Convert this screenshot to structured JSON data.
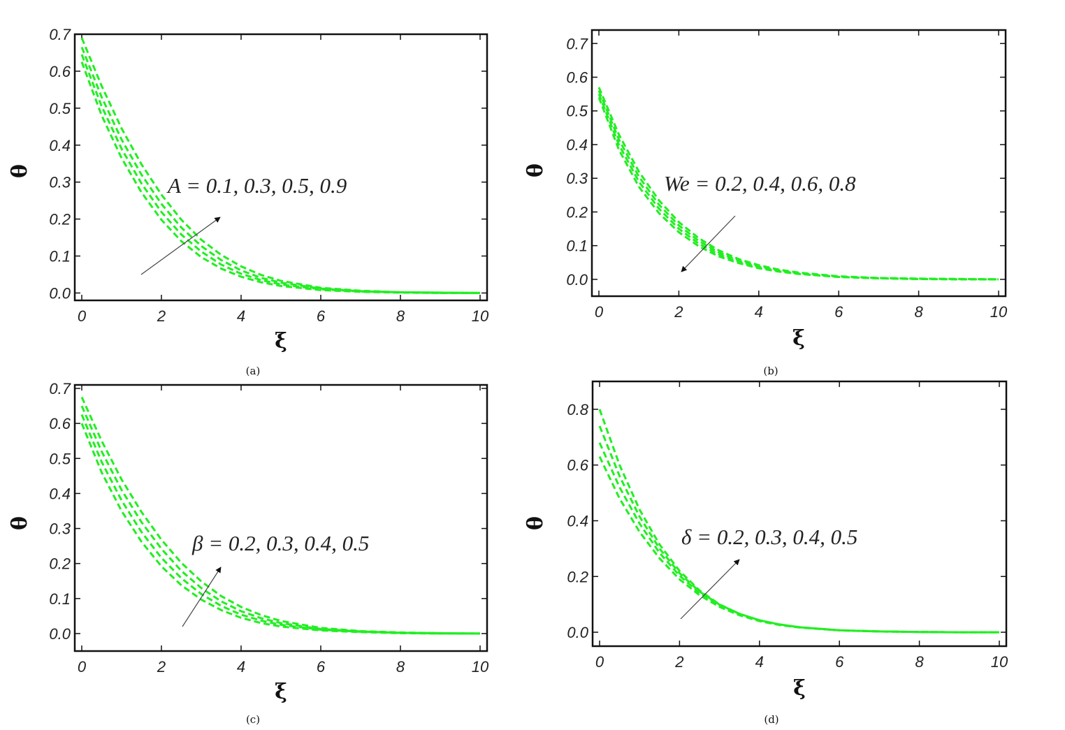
{
  "chart_data": [
    {
      "type": "line",
      "panel_label": "(a)",
      "xlabel": "ξ",
      "ylabel": "θ",
      "xlim": [
        0,
        10
      ],
      "ylim": [
        -0.02,
        0.7
      ],
      "xticks": [
        "0",
        "2",
        "4",
        "6",
        "8",
        "10"
      ],
      "yticks": [
        "0.0",
        "0.1",
        "0.2",
        "0.3",
        "0.4",
        "0.5",
        "0.6",
        "0.7"
      ],
      "grid": false,
      "line_color": "#22ee22",
      "line_style": "dashed",
      "annotation": "A = 0.1, 0.3, 0.5, 0.9",
      "arrow_direction": "up",
      "series": [
        {
          "x": [
            0,
            0.5,
            1,
            1.5,
            2,
            2.5,
            3,
            3.5,
            4,
            4.5,
            5,
            6,
            7,
            8,
            9,
            10
          ],
          "y": [
            0.625,
            0.48,
            0.365,
            0.272,
            0.198,
            0.14,
            0.097,
            0.066,
            0.044,
            0.029,
            0.019,
            0.008,
            0.003,
            0.001,
            0.0,
            0.0
          ]
        },
        {
          "x": [
            0,
            0.5,
            1,
            1.5,
            2,
            2.5,
            3,
            3.5,
            4,
            4.5,
            5,
            6,
            7,
            8,
            9,
            10
          ],
          "y": [
            0.645,
            0.505,
            0.39,
            0.296,
            0.219,
            0.158,
            0.112,
            0.077,
            0.052,
            0.035,
            0.023,
            0.01,
            0.004,
            0.002,
            0.0,
            0.0
          ]
        },
        {
          "x": [
            0,
            0.5,
            1,
            1.5,
            2,
            2.5,
            3,
            3.5,
            4,
            4.5,
            5,
            6,
            7,
            8,
            9,
            10
          ],
          "y": [
            0.665,
            0.53,
            0.415,
            0.32,
            0.241,
            0.177,
            0.127,
            0.089,
            0.061,
            0.041,
            0.028,
            0.012,
            0.005,
            0.002,
            0.001,
            0.0
          ]
        },
        {
          "x": [
            0,
            0.5,
            1,
            1.5,
            2,
            2.5,
            3,
            3.5,
            4,
            4.5,
            5,
            6,
            7,
            8,
            9,
            10
          ],
          "y": [
            0.69,
            0.56,
            0.445,
            0.348,
            0.266,
            0.198,
            0.144,
            0.103,
            0.072,
            0.049,
            0.033,
            0.014,
            0.006,
            0.002,
            0.001,
            0.0
          ]
        }
      ]
    },
    {
      "type": "line",
      "panel_label": "(b)",
      "xlabel": "ξ",
      "ylabel": "θ",
      "xlim": [
        0,
        10
      ],
      "ylim": [
        -0.05,
        0.74
      ],
      "xticks": [
        "0",
        "2",
        "4",
        "6",
        "8",
        "10"
      ],
      "yticks": [
        "0.0",
        "0.1",
        "0.2",
        "0.3",
        "0.4",
        "0.5",
        "0.6",
        "0.7"
      ],
      "grid": false,
      "line_color": "#22ee22",
      "line_style": "dashed",
      "annotation": "We = 0.2, 0.4, 0.6, 0.8",
      "arrow_direction": "down",
      "series": [
        {
          "x": [
            0,
            0.5,
            1,
            1.5,
            2,
            2.5,
            3,
            3.5,
            4,
            4.5,
            5,
            6,
            7,
            8,
            9,
            10
          ],
          "y": [
            0.57,
            0.43,
            0.32,
            0.235,
            0.17,
            0.122,
            0.086,
            0.06,
            0.042,
            0.029,
            0.02,
            0.009,
            0.004,
            0.002,
            0.001,
            0.0
          ]
        },
        {
          "x": [
            0,
            0.5,
            1,
            1.5,
            2,
            2.5,
            3,
            3.5,
            4,
            4.5,
            5,
            6,
            7,
            8,
            9,
            10
          ],
          "y": [
            0.56,
            0.415,
            0.305,
            0.222,
            0.16,
            0.114,
            0.08,
            0.056,
            0.039,
            0.027,
            0.018,
            0.008,
            0.004,
            0.002,
            0.001,
            0.0
          ]
        },
        {
          "x": [
            0,
            0.5,
            1,
            1.5,
            2,
            2.5,
            3,
            3.5,
            4,
            4.5,
            5,
            6,
            7,
            8,
            9,
            10
          ],
          "y": [
            0.55,
            0.4,
            0.29,
            0.21,
            0.15,
            0.106,
            0.074,
            0.052,
            0.036,
            0.025,
            0.017,
            0.007,
            0.003,
            0.001,
            0.0,
            0.0
          ]
        },
        {
          "x": [
            0,
            0.5,
            1,
            1.5,
            2,
            2.5,
            3,
            3.5,
            4,
            4.5,
            5,
            6,
            7,
            8,
            9,
            10
          ],
          "y": [
            0.54,
            0.385,
            0.275,
            0.197,
            0.14,
            0.098,
            0.068,
            0.048,
            0.033,
            0.023,
            0.016,
            0.007,
            0.003,
            0.001,
            0.0,
            0.0
          ]
        }
      ]
    },
    {
      "type": "line",
      "panel_label": "(c)",
      "xlabel": "ξ",
      "ylabel": "θ",
      "xlim": [
        0,
        10
      ],
      "ylim": [
        -0.05,
        0.71
      ],
      "xticks": [
        "0",
        "2",
        "4",
        "6",
        "8",
        "10"
      ],
      "yticks": [
        "0.0",
        "0.1",
        "0.2",
        "0.3",
        "0.4",
        "0.5",
        "0.6",
        "0.7"
      ],
      "grid": false,
      "line_color": "#22ee22",
      "line_style": "dashed",
      "annotation": "β = 0.2, 0.3, 0.4, 0.5",
      "arrow_direction": "up",
      "series": [
        {
          "x": [
            0,
            0.5,
            1,
            1.5,
            2,
            2.5,
            3,
            3.5,
            4,
            4.5,
            5,
            6,
            7,
            8,
            9,
            10
          ],
          "y": [
            0.6,
            0.46,
            0.35,
            0.262,
            0.192,
            0.138,
            0.097,
            0.067,
            0.045,
            0.03,
            0.02,
            0.009,
            0.004,
            0.001,
            0.0,
            0.0
          ]
        },
        {
          "x": [
            0,
            0.5,
            1,
            1.5,
            2,
            2.5,
            3,
            3.5,
            4,
            4.5,
            5,
            6,
            7,
            8,
            9,
            10
          ],
          "y": [
            0.625,
            0.49,
            0.38,
            0.29,
            0.216,
            0.158,
            0.113,
            0.079,
            0.054,
            0.037,
            0.025,
            0.011,
            0.005,
            0.002,
            0.0,
            0.0
          ]
        },
        {
          "x": [
            0,
            0.5,
            1,
            1.5,
            2,
            2.5,
            3,
            3.5,
            4,
            4.5,
            5,
            6,
            7,
            8,
            9,
            10
          ],
          "y": [
            0.65,
            0.52,
            0.41,
            0.318,
            0.242,
            0.179,
            0.13,
            0.092,
            0.064,
            0.044,
            0.03,
            0.013,
            0.006,
            0.002,
            0.001,
            0.0
          ]
        },
        {
          "x": [
            0,
            0.5,
            1,
            1.5,
            2,
            2.5,
            3,
            3.5,
            4,
            4.5,
            5,
            6,
            7,
            8,
            9,
            10
          ],
          "y": [
            0.675,
            0.55,
            0.44,
            0.347,
            0.268,
            0.202,
            0.149,
            0.107,
            0.076,
            0.053,
            0.036,
            0.016,
            0.007,
            0.003,
            0.001,
            0.0
          ]
        }
      ]
    },
    {
      "type": "line",
      "panel_label": "(d)",
      "xlabel": "ξ",
      "ylabel": "θ",
      "xlim": [
        0,
        10
      ],
      "ylim": [
        -0.05,
        0.9
      ],
      "xticks": [
        "0",
        "2",
        "4",
        "6",
        "8",
        "10"
      ],
      "yticks": [
        "0.0",
        "0.2",
        "0.4",
        "0.6",
        "0.8"
      ],
      "grid": false,
      "line_color": "#22ee22",
      "line_style": "dashed",
      "annotation": "δ = 0.2, 0.3, 0.4, 0.5",
      "arrow_direction": "up",
      "series": [
        {
          "x": [
            0,
            0.5,
            1,
            1.5,
            2,
            2.5,
            3,
            3.5,
            4,
            4.5,
            5,
            6,
            7,
            8,
            9,
            10
          ],
          "y": [
            0.63,
            0.48,
            0.36,
            0.265,
            0.19,
            0.133,
            0.091,
            0.061,
            0.04,
            0.026,
            0.017,
            0.007,
            0.003,
            0.001,
            0.0,
            0.0
          ]
        },
        {
          "x": [
            0,
            0.5,
            1,
            1.5,
            2,
            2.5,
            3,
            3.5,
            4,
            4.5,
            5,
            6,
            7,
            8,
            9,
            10
          ],
          "y": [
            0.68,
            0.52,
            0.39,
            0.285,
            0.203,
            0.141,
            0.096,
            0.064,
            0.042,
            0.027,
            0.018,
            0.007,
            0.003,
            0.001,
            0.0,
            0.0
          ]
        },
        {
          "x": [
            0,
            0.5,
            1,
            1.5,
            2,
            2.5,
            3,
            3.5,
            4,
            4.5,
            5,
            6,
            7,
            8,
            9,
            10
          ],
          "y": [
            0.74,
            0.56,
            0.415,
            0.3,
            0.212,
            0.146,
            0.099,
            0.066,
            0.043,
            0.028,
            0.018,
            0.007,
            0.003,
            0.001,
            0.0,
            0.0
          ]
        },
        {
          "x": [
            0,
            0.5,
            1,
            1.5,
            2,
            2.5,
            3,
            3.5,
            4,
            4.5,
            5,
            6,
            7,
            8,
            9,
            10
          ],
          "y": [
            0.8,
            0.6,
            0.44,
            0.315,
            0.22,
            0.15,
            0.1,
            0.066,
            0.043,
            0.028,
            0.018,
            0.007,
            0.003,
            0.001,
            0.0,
            0.0
          ]
        }
      ]
    }
  ]
}
